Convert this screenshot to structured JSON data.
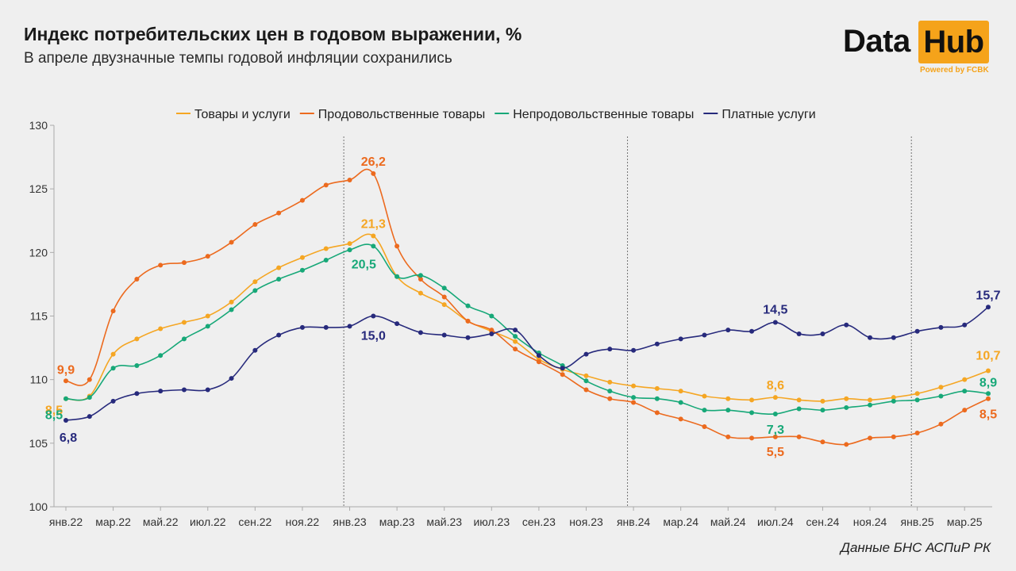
{
  "title": "Индекс потребительских цен в годовом выражении, %",
  "subtitle": "В апреле двузначные темпы годовой инфляции сохранились",
  "logo": {
    "data": "Data",
    "hub": "Hub",
    "powered": "Powered by FCBK"
  },
  "source": "Данные БНС АСПиР РК",
  "colors": {
    "goods_services": "#f5a623",
    "food": "#ec6a1e",
    "nonfood": "#17a878",
    "services": "#272a7c",
    "axis": "#aaaaaa",
    "text": "#333333"
  },
  "chart_data": {
    "type": "line",
    "x": [
      "янв.22",
      "фев.22",
      "мар.22",
      "апр.22",
      "май.22",
      "июн.22",
      "июл.22",
      "авг.22",
      "сен.22",
      "окт.22",
      "ноя.22",
      "дек.22",
      "янв.23",
      "фев.23",
      "мар.23",
      "апр.23",
      "май.23",
      "июн.23",
      "июл.23",
      "авг.23",
      "сен.23",
      "окт.23",
      "ноя.23",
      "дек.23",
      "янв.24",
      "фев.24",
      "мар.24",
      "апр.24",
      "май.24",
      "июн.24",
      "июл.24",
      "авг.24",
      "сен.24",
      "окт.24",
      "ноя.24",
      "дек.24",
      "янв.25",
      "фев.25",
      "мар.25",
      "апр.25"
    ],
    "xtick_labels": [
      "янв.22",
      "мар.22",
      "май.22",
      "июл.22",
      "сен.22",
      "ноя.22",
      "янв.23",
      "мар.23",
      "май.23",
      "июл.23",
      "сен.23",
      "ноя.23",
      "янв.24",
      "мар.24",
      "май.24",
      "июл.24",
      "сен.24",
      "ноя.24",
      "янв.25",
      "мар.25"
    ],
    "ylim": [
      100,
      130
    ],
    "yticks": [
      100,
      105,
      110,
      115,
      120,
      125,
      130
    ],
    "legend_position": "top",
    "vertical_lines_at": [
      "янв.23",
      "янв.24",
      "янв.25"
    ],
    "series": [
      {
        "name": "Товары и услуги",
        "color_key": "goods_services",
        "values": [
          108.5,
          108.7,
          112.0,
          113.2,
          114.0,
          114.5,
          115.0,
          116.1,
          117.7,
          118.8,
          119.6,
          120.3,
          120.7,
          121.3,
          118.1,
          116.8,
          115.9,
          114.6,
          113.8,
          113.0,
          111.6,
          110.8,
          110.3,
          109.8,
          109.5,
          109.3,
          109.1,
          108.7,
          108.5,
          108.4,
          108.6,
          108.4,
          108.3,
          108.5,
          108.4,
          108.6,
          108.9,
          109.4,
          110.0,
          110.7
        ]
      },
      {
        "name": "Продовольственные товары",
        "color_key": "food",
        "values": [
          109.9,
          110.0,
          115.4,
          117.9,
          119.0,
          119.2,
          119.7,
          120.8,
          122.2,
          123.1,
          124.1,
          125.3,
          125.7,
          126.2,
          120.5,
          117.9,
          116.5,
          114.6,
          113.9,
          112.4,
          111.4,
          110.4,
          109.2,
          108.5,
          108.2,
          107.4,
          106.9,
          106.3,
          105.5,
          105.4,
          105.5,
          105.5,
          105.1,
          104.9,
          105.4,
          105.5,
          105.8,
          106.5,
          107.6,
          108.5
        ]
      },
      {
        "name": "Непродовольственные товары",
        "color_key": "nonfood",
        "values": [
          108.5,
          108.6,
          110.9,
          111.1,
          111.9,
          113.2,
          114.2,
          115.5,
          117.0,
          117.9,
          118.6,
          119.4,
          120.2,
          120.5,
          118.1,
          118.2,
          117.2,
          115.8,
          115.0,
          113.4,
          112.1,
          111.1,
          109.9,
          109.1,
          108.6,
          108.5,
          108.2,
          107.6,
          107.6,
          107.4,
          107.3,
          107.7,
          107.6,
          107.8,
          108.0,
          108.3,
          108.4,
          108.7,
          109.1,
          108.9
        ]
      },
      {
        "name": "Платные услуги",
        "color_key": "services",
        "values": [
          106.8,
          107.1,
          108.3,
          108.9,
          109.1,
          109.2,
          109.2,
          110.1,
          112.3,
          113.5,
          114.1,
          114.1,
          114.2,
          115.0,
          114.4,
          113.7,
          113.5,
          113.3,
          113.6,
          113.9,
          111.9,
          110.9,
          112.0,
          112.4,
          112.3,
          112.8,
          113.2,
          113.5,
          113.9,
          113.8,
          114.5,
          113.6,
          113.6,
          114.3,
          113.3,
          113.3,
          113.8,
          114.1,
          114.3,
          115.7
        ]
      }
    ],
    "annotations": [
      {
        "series": 0,
        "index": 0,
        "text": "8,5",
        "dx": -15,
        "dy": 20
      },
      {
        "series": 0,
        "index": 13,
        "text": "21,3",
        "dx": 0,
        "dy": -10
      },
      {
        "series": 0,
        "index": 30,
        "text": "8,6",
        "dx": 0,
        "dy": -10
      },
      {
        "series": 0,
        "index": 39,
        "text": "10,7",
        "dx": 0,
        "dy": -14
      },
      {
        "series": 1,
        "index": 0,
        "text": "9,9",
        "dx": 0,
        "dy": -9
      },
      {
        "series": 1,
        "index": 13,
        "text": "26,2",
        "dx": 0,
        "dy": -10
      },
      {
        "series": 1,
        "index": 30,
        "text": "5,5",
        "dx": 0,
        "dy": 24
      },
      {
        "series": 1,
        "index": 39,
        "text": "8,5",
        "dx": 0,
        "dy": 25
      },
      {
        "series": 2,
        "index": 0,
        "text": "8,5",
        "dx": -15,
        "dy": 26
      },
      {
        "series": 2,
        "index": 13,
        "text": "20,5",
        "dx": -12,
        "dy": 28
      },
      {
        "series": 2,
        "index": 30,
        "text": "7,3",
        "dx": 0,
        "dy": 25
      },
      {
        "series": 2,
        "index": 39,
        "text": "8,9",
        "dx": 0,
        "dy": -9
      },
      {
        "series": 3,
        "index": 0,
        "text": "6,8",
        "dx": 3,
        "dy": 27
      },
      {
        "series": 3,
        "index": 13,
        "text": "15,0",
        "dx": 0,
        "dy": 30
      },
      {
        "series": 3,
        "index": 30,
        "text": "14,5",
        "dx": 0,
        "dy": -11
      },
      {
        "series": 3,
        "index": 39,
        "text": "15,7",
        "dx": 0,
        "dy": -10
      }
    ]
  }
}
